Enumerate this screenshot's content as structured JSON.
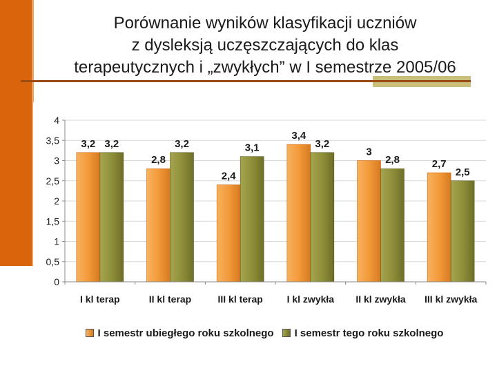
{
  "title_lines": [
    "Porównanie wyników klasyfikacji uczniów",
    "z dysleksją uczęszczających do klas",
    "terapeutycznych i „zwykłych” w I semestrze 2005/06"
  ],
  "colors": {
    "series1": "#f39a3a",
    "series1_dark": "#c86a15",
    "series2": "#8f8f3a",
    "series2_dark": "#5e5e20",
    "accent": "#d9640b"
  },
  "chart_data": {
    "type": "bar",
    "title": "Porównanie wyników klasyfikacji uczniów z dysleksją uczęszczających do klas terapeutycznych i „zwykłych” w I semestrze 2005/06",
    "categories": [
      "I kl terap",
      "II kl terap",
      "III kl terap",
      "I kl zwykła",
      "II kl zwykła",
      "III kl zwykła"
    ],
    "series": [
      {
        "name": "I semestr ubiegłego roku szkolnego",
        "values": [
          3.2,
          2.8,
          2.4,
          3.4,
          3,
          2.7
        ],
        "labels": [
          "3,2",
          "2,8",
          "2,4",
          "3,4",
          "3",
          "2,7"
        ]
      },
      {
        "name": "I semestr tego roku szkolnego",
        "values": [
          3.2,
          3.2,
          3.1,
          3.2,
          2.8,
          2.5
        ],
        "labels": [
          "3,2",
          "3,2",
          "3,1",
          "3,2",
          "2,8",
          "2,5"
        ]
      }
    ],
    "ylim": [
      0,
      4
    ],
    "yticks": [
      0,
      0.5,
      1,
      1.5,
      2,
      2.5,
      3,
      3.5,
      4
    ],
    "ytick_labels": [
      "0",
      "0,5",
      "1",
      "1,5",
      "2",
      "2,5",
      "3",
      "3,5",
      "4"
    ],
    "xlabel": "",
    "ylabel": "",
    "grid": true,
    "legend": "bottom"
  }
}
